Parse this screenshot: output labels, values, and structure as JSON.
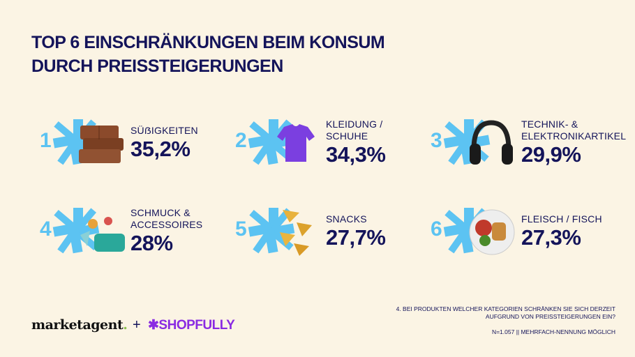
{
  "title_lines": [
    "TOP 6 EINSCHRÄNKUNGEN BEIM KONSUM",
    "DURCH PREISSTEIGERUNGEN"
  ],
  "colors": {
    "background": "#fbf4e4",
    "text": "#14145a",
    "accent": "#5cc3f2",
    "shopfully": "#8a2be2"
  },
  "items": [
    {
      "rank": "1",
      "label": "SÜẞIGKEITEN",
      "value": "35,2%",
      "icon": "chocolate-image"
    },
    {
      "rank": "2",
      "label": "KLEIDUNG / SCHUHE",
      "value": "34,3%",
      "icon": "tshirt-image"
    },
    {
      "rank": "3",
      "label": "TECHNIK- & ELEKTRONIKARTIKEL",
      "value": "29,9%",
      "icon": "headphones-image"
    },
    {
      "rank": "4",
      "label": "SCHMUCK & ACCESSOIRES",
      "value": "28%",
      "icon": "accessories-image"
    },
    {
      "rank": "5",
      "label": "SNACKS",
      "value": "27,7%",
      "icon": "chips-image"
    },
    {
      "rank": "6",
      "label": "FLEISCH / FISCH",
      "value": "27,3%",
      "icon": "meat-plate-image"
    }
  ],
  "footer": {
    "logo_marketagent": "marketagent",
    "plus": "+",
    "logo_shopfully": "SHOPFULLY",
    "question_line1": "4. BEI PRODUKTEN WELCHER KATEGORIEN SCHRÄNKEN SIE SICH DERZEIT",
    "question_line2": "AUFGRUND VON PREISSTEIGERUNGEN EIN?",
    "sample": "N=1.057 || MEHRFACH-NENNUNG MÖGLICH"
  }
}
